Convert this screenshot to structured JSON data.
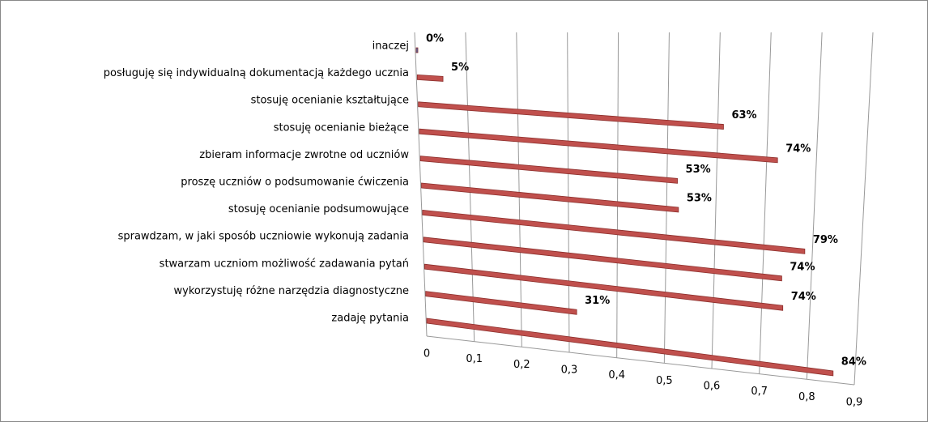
{
  "chart_data": {
    "type": "bar",
    "orientation": "horizontal",
    "categories": [
      "inaczej",
      "posługuję się indywidualną dokumentacją każdego ucznia",
      "stosuję ocenianie kształtujące",
      "stosuję ocenianie bieżące",
      "zbieram informacje zwrotne od uczniów",
      "proszę uczniów o podsumowanie ćwiczenia",
      "stosuję ocenianie podsumowujące",
      "sprawdzam, w jaki sposób uczniowie wykonują zadania",
      "stwarzam uczniom możliwość zadawania pytań",
      "wykorzystuję różne narzędzia diagnostyczne",
      "zadaję pytania"
    ],
    "values": [
      0,
      0.05,
      0.63,
      0.74,
      0.53,
      0.53,
      0.79,
      0.74,
      0.74,
      0.31,
      0.84
    ],
    "value_labels": [
      "0%",
      "5%",
      "63%",
      "74%",
      "53%",
      "53%",
      "79%",
      "74%",
      "74%",
      "31%",
      "84%"
    ],
    "color": "#c0504d",
    "xlim": [
      0,
      0.9
    ],
    "xticks": [
      0,
      {
        "value": 0.1,
        "label": "0,1"
      },
      {
        "value": 0.2,
        "label": "0,2"
      },
      {
        "value": 0.3,
        "label": "0,3"
      },
      {
        "value": 0.4,
        "label": "0,4"
      },
      {
        "value": 0.5,
        "label": "0,5"
      },
      {
        "value": 0.6,
        "label": "0,6"
      },
      {
        "value": 0.7,
        "label": "0,7"
      },
      {
        "value": 0.8,
        "label": "0,8"
      },
      {
        "value": 0.9,
        "label": "0,9"
      }
    ],
    "grid": true
  }
}
